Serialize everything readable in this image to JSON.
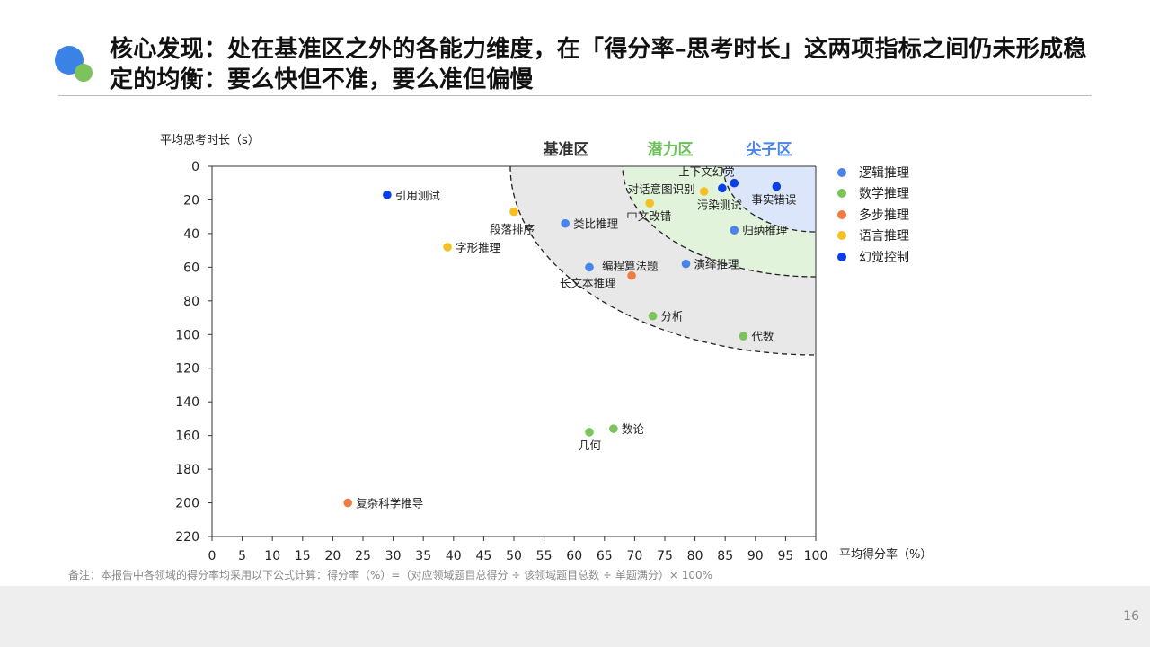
{
  "title": "核心发现：处在基准区之外的各能力维度，在「得分率–思考时长」这两项指标之间仍未形成稳定的均衡：要么快但不准，要么准但偏慢",
  "note": "备注：本报告中各领域的得分率均采用以下公式计算：得分率（%）=（对应领域题目总得分 ÷ 该领域题目总数 ÷ 单题满分）× 100%",
  "page_number": "16",
  "colors": {
    "blue_dot": "#3b82e6",
    "green_dot": "#7cc35d",
    "zone_base": "#e8e8e8",
    "zone_potential": "#e2f3dc",
    "zone_elite": "#dce6fa"
  },
  "chart_data": {
    "type": "scatter",
    "xlabel": "平均得分率（%）",
    "ylabel": "平均思考时长（s）",
    "xlim": [
      0,
      100
    ],
    "ylim": [
      0,
      220
    ],
    "y_inverted": true,
    "xticks": [
      "0",
      "5",
      "10",
      "15",
      "20",
      "25",
      "30",
      "35",
      "40",
      "45",
      "50",
      "55",
      "60",
      "65",
      "70",
      "75",
      "80",
      "85",
      "90",
      "95",
      "100"
    ],
    "yticks": [
      "0",
      "20",
      "40",
      "60",
      "80",
      "100",
      "120",
      "140",
      "160",
      "180",
      "200",
      "220"
    ],
    "grid": false,
    "legend_position": "right",
    "zones": [
      {
        "name": "基准区",
        "color": "#333333"
      },
      {
        "name": "潜力区",
        "color": "#6cbf58"
      },
      {
        "name": "尖子区",
        "color": "#4a84e8"
      }
    ],
    "series": [
      {
        "name": "逻辑推理",
        "color": "#4a84e8",
        "points": [
          {
            "x": 58.5,
            "y": 34,
            "label": "类比推理"
          },
          {
            "x": 86.5,
            "y": 38,
            "label": "归纳推理"
          },
          {
            "x": 78.5,
            "y": 58,
            "label": "演绎推理"
          },
          {
            "x": 62.5,
            "y": 60,
            "label": "长文本推理"
          }
        ]
      },
      {
        "name": "数学推理",
        "color": "#7cc35d",
        "points": [
          {
            "x": 73,
            "y": 89,
            "label": "分析"
          },
          {
            "x": 88,
            "y": 101,
            "label": "代数"
          },
          {
            "x": 66.5,
            "y": 156,
            "label": "数论"
          },
          {
            "x": 62.5,
            "y": 158,
            "label": "几何"
          }
        ]
      },
      {
        "name": "多步推理",
        "color": "#ef7b45",
        "points": [
          {
            "x": 69.5,
            "y": 65,
            "label": "编程算法题"
          },
          {
            "x": 22.5,
            "y": 200,
            "label": "复杂科学推导"
          }
        ]
      },
      {
        "name": "语言推理",
        "color": "#f5c023",
        "points": [
          {
            "x": 50,
            "y": 27,
            "label": "段落排序"
          },
          {
            "x": 39,
            "y": 48,
            "label": "字形推理"
          },
          {
            "x": 72.5,
            "y": 22,
            "label": "中文改错"
          },
          {
            "x": 81.5,
            "y": 15,
            "label": "对话意图识别"
          }
        ]
      },
      {
        "name": "幻觉控制",
        "color": "#0a3ee6",
        "points": [
          {
            "x": 29,
            "y": 17,
            "label": "引用测试"
          },
          {
            "x": 86.5,
            "y": 10,
            "label": "上下文幻觉"
          },
          {
            "x": 84.5,
            "y": 13,
            "label": "污染测试"
          },
          {
            "x": 93.5,
            "y": 12,
            "label": "事实错误"
          }
        ]
      }
    ]
  }
}
